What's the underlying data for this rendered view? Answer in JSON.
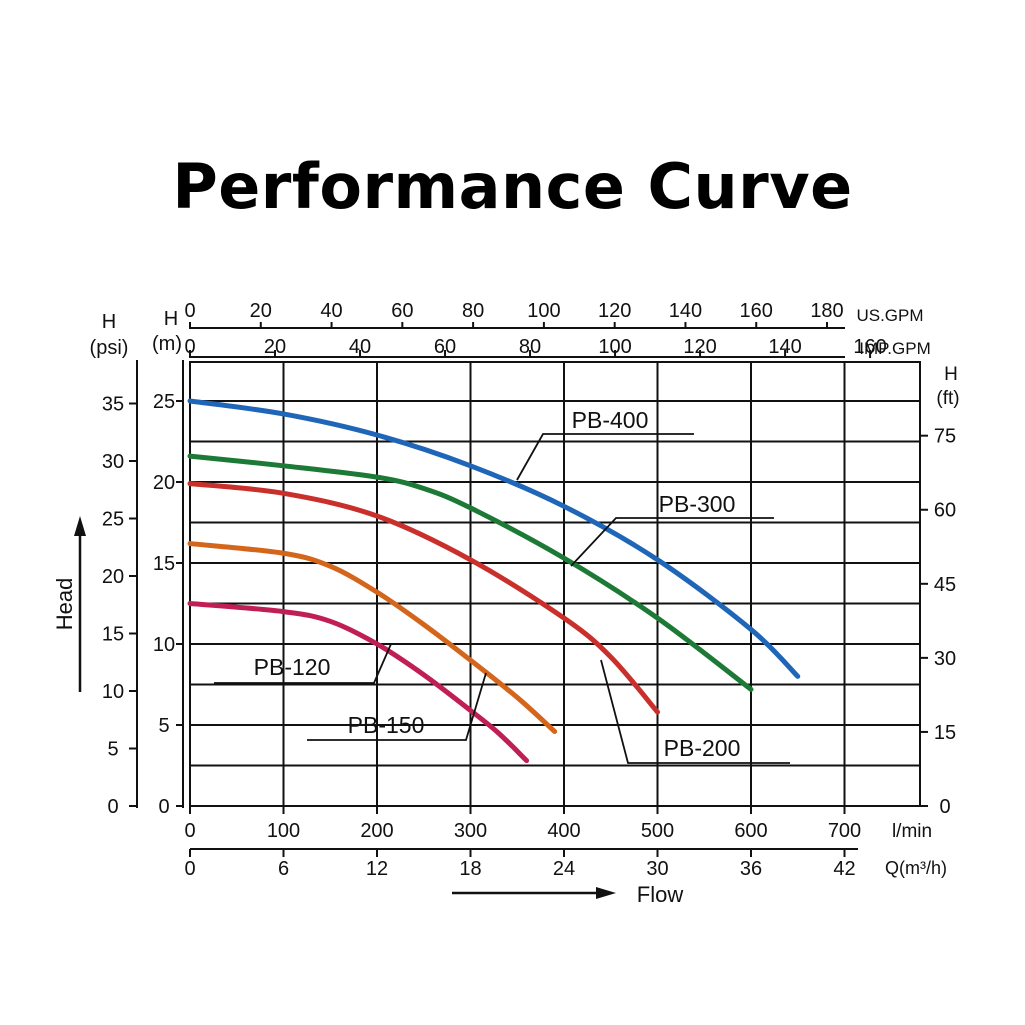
{
  "title": "Performance Curve",
  "chart_data": {
    "type": "line",
    "title": "Performance Curve",
    "xlabel": "Flow",
    "ylabel": "Head",
    "x_unit": "l/min",
    "xlim": [
      0,
      800
    ],
    "ylim": [
      0,
      25
    ],
    "grid": true,
    "axes": {
      "y_m": {
        "unit_top": "H",
        "unit_bottom": "(m)",
        "ticks": [
          0,
          5,
          10,
          15,
          20,
          25
        ]
      },
      "y_psi": {
        "unit_top": "H",
        "unit_bottom": "(psi)",
        "ticks": [
          0,
          5,
          10,
          15,
          20,
          25,
          30,
          35
        ]
      },
      "y_ft": {
        "unit_top": "H",
        "unit_bottom": "(ft)",
        "ticks": [
          0,
          15,
          30,
          45,
          60,
          75
        ]
      },
      "x_lmin": {
        "unit": "l/min",
        "ticks": [
          0,
          100,
          200,
          300,
          400,
          500,
          600,
          700
        ]
      },
      "x_m3h": {
        "unit": "Q(m³/h)",
        "ticks": [
          0,
          6,
          12,
          18,
          24,
          30,
          36,
          42
        ]
      },
      "x_usgpm": {
        "unit": "US.GPM",
        "ticks": [
          0,
          20,
          40,
          60,
          80,
          100,
          120,
          140,
          160,
          180
        ]
      },
      "x_impgpm": {
        "unit": "IMP.GPM",
        "ticks": [
          0,
          20,
          40,
          60,
          80,
          100,
          120,
          140,
          160
        ]
      }
    },
    "series": [
      {
        "name": "PB-400",
        "color": "#1f66b8",
        "x": [
          0,
          100,
          200,
          300,
          400,
          500,
          600,
          650
        ],
        "y": [
          25,
          24.2,
          22.9,
          21,
          18.5,
          15.2,
          10.9,
          8
        ]
      },
      {
        "name": "PB-300",
        "color": "#1d7a36",
        "x": [
          0,
          100,
          200,
          250,
          300,
          400,
          500,
          600
        ],
        "y": [
          21.6,
          21,
          20.3,
          19.6,
          18.4,
          15.3,
          11.6,
          7.2
        ]
      },
      {
        "name": "PB-200",
        "color": "#c9302c",
        "x": [
          0,
          100,
          200,
          300,
          400,
          450,
          500
        ],
        "y": [
          19.9,
          19.3,
          17.9,
          15.2,
          11.6,
          9.2,
          5.8
        ]
      },
      {
        "name": "PB-150",
        "color": "#d4661c",
        "x": [
          0,
          100,
          150,
          200,
          250,
          300,
          350,
          390
        ],
        "y": [
          16.2,
          15.6,
          14.8,
          13.2,
          11.2,
          9,
          6.7,
          4.6
        ]
      },
      {
        "name": "PB-120",
        "color": "#c01f55",
        "x": [
          0,
          100,
          150,
          200,
          250,
          300,
          330,
          360
        ],
        "y": [
          12.5,
          12,
          11.4,
          10,
          8.1,
          5.9,
          4.5,
          2.8
        ]
      }
    ],
    "labels": [
      {
        "text": "PB-400"
      },
      {
        "text": "PB-300"
      },
      {
        "text": "PB-200"
      },
      {
        "text": "PB-150"
      },
      {
        "text": "PB-120"
      }
    ]
  }
}
